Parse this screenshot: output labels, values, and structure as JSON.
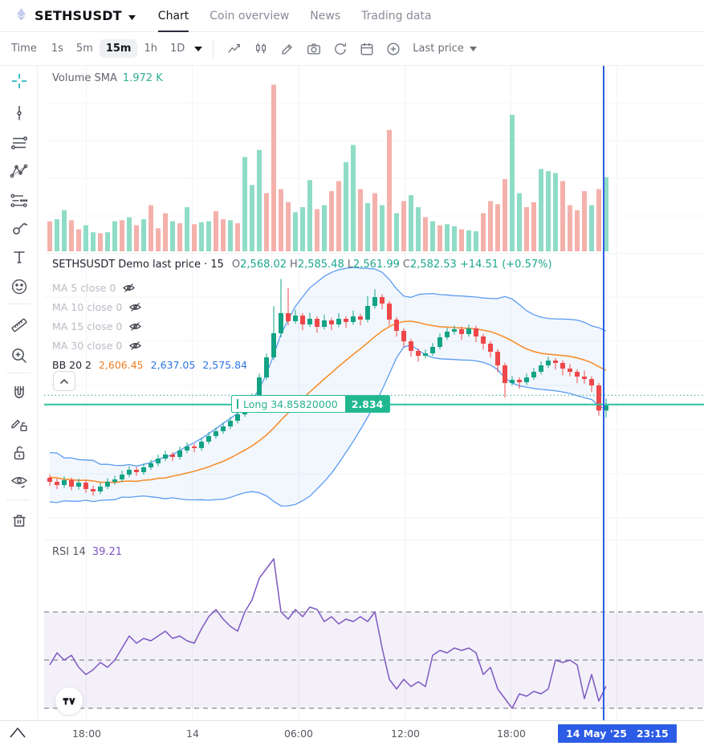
{
  "header": {
    "symbol": "SETHSUSDT",
    "tabs": [
      "Chart",
      "Coin overview",
      "News",
      "Trading data"
    ],
    "active_tab": "Chart"
  },
  "toolbar": {
    "time_label": "Time",
    "intervals": [
      "1s",
      "5m",
      "15m",
      "1h",
      "1D"
    ],
    "active_interval": "15m",
    "icons": [
      "indicators-icon",
      "candles-icon",
      "draw-icon",
      "camera-icon",
      "undo-icon",
      "calendar-icon",
      "add-circle-icon"
    ],
    "price_mode": "Last price"
  },
  "left_toolbar": {
    "tools": [
      "crosshair",
      "trend-line",
      "fib-lines",
      "xabcd-pattern",
      "forecast",
      "brush",
      "text",
      "emoji",
      "ruler",
      "zoom-in",
      "magnet",
      "draw-lock",
      "lock",
      "eye",
      "trash",
      "chevron-up"
    ],
    "active_tool": "crosshair"
  },
  "volume_pane": {
    "label": "Volume SMA",
    "value": "1.972 K"
  },
  "price_pane": {
    "legend_title": "SETHSUSDT Demo last price · 15",
    "ohlc_labels": [
      "O",
      "H",
      "L",
      "C"
    ],
    "ohlc": {
      "open": "2,568.02",
      "high": "2,585.48",
      "low": "2,561.99",
      "close": "2,582.53",
      "change": "+14.51 (+0.57%)"
    },
    "ma_rows": [
      "MA 5 close 0",
      "MA 10 close 0",
      "MA 15 close 0",
      "MA 30 close 0"
    ],
    "bb": {
      "label": "BB 20 2",
      "basis": "2,606.45",
      "upper": "2,637.05",
      "lower": "2,575.84"
    },
    "position": {
      "label": "Long 34.85820000",
      "value": "2.834"
    }
  },
  "rsi_pane": {
    "label": "RSI 14",
    "value": "39.21"
  },
  "time_axis": {
    "labels": [
      "18:00",
      "14",
      "06:00",
      "12:00",
      "18:00"
    ],
    "crosshair_date": "14 May '25",
    "crosshair_time": "23:15"
  },
  "colors": {
    "up": "#12a385",
    "down": "#ef4749",
    "vol_up": "#8fdcc6",
    "vol_down": "#f4b1ab",
    "bb_line": "#5b9cf0",
    "bb_fill": "rgba(90,150,240,0.08)",
    "bb_mid": "#f68f2e",
    "rsi": "#7e57c2",
    "rsi_band": "rgba(126,87,194,0.09)",
    "accent_teal": "#1ca78c",
    "crosshair_blue": "#2c5ce5",
    "entry_green": "#2fbf9f"
  },
  "chart_data": [
    {
      "pane": "volume",
      "type": "bar",
      "indicator": "Volume SMA",
      "current_value": "1.972 K",
      "unit": "K",
      "ylim": [
        0,
        9
      ],
      "values": [
        1.5,
        1.6,
        2.05,
        1.55,
        1.1,
        1.3,
        0.95,
        0.9,
        0.95,
        1.5,
        1.55,
        1.7,
        1.3,
        1.6,
        2.3,
        1.15,
        1.9,
        1.5,
        1.4,
        2.2,
        1.35,
        1.45,
        1.5,
        2.0,
        1.6,
        1.55,
        1.4,
        4.7,
        3.3,
        5.05,
        2.9,
        8.3,
        3.1,
        2.45,
        1.95,
        2.2,
        3.55,
        2.1,
        2.3,
        3.0,
        3.5,
        4.45,
        5.3,
        3.1,
        2.4,
        2.9,
        2.3,
        6.05,
        1.9,
        2.5,
        2.8,
        2.2,
        1.7,
        1.5,
        1.3,
        1.35,
        1.25,
        1.1,
        1.05,
        1.0,
        1.9,
        2.5,
        2.35,
        3.6,
        6.8,
        2.9,
        2.2,
        2.45,
        4.1,
        4.0,
        3.9,
        3.5,
        2.3,
        2.05,
        3.0,
        2.3,
        3.1,
        3.7
      ],
      "up": [
        0,
        1,
        1,
        0,
        0,
        1,
        1,
        0,
        1,
        1,
        0,
        1,
        0,
        1,
        0,
        0,
        0,
        1,
        0,
        1,
        0,
        1,
        1,
        0,
        0,
        1,
        0,
        1,
        1,
        1,
        0,
        0,
        0,
        0,
        1,
        1,
        1,
        0,
        1,
        0,
        0,
        1,
        1,
        0,
        1,
        0,
        1,
        0,
        1,
        0,
        1,
        1,
        0,
        1,
        0,
        1,
        1,
        0,
        1,
        1,
        0,
        0,
        0,
        0,
        1,
        1,
        0,
        0,
        1,
        1,
        1,
        0,
        0,
        0,
        0,
        1,
        0,
        1
      ]
    },
    {
      "pane": "price",
      "type": "candlestick",
      "ylim": [
        2515.7,
        2658.5
      ],
      "bollinger": {
        "length": 20,
        "mult": 2
      },
      "entry_price": 2583.0,
      "dotted_price": 2587.6,
      "bb_seed": [
        2556,
        2549,
        2560,
        2545,
        2552,
        2538,
        2548,
        2556,
        2542,
        2550,
        2536,
        2547,
        2553,
        2540,
        2549,
        2543,
        2554,
        2539,
        2546,
        2544
      ],
      "candles": [
        [
          2546.5,
          2548.0,
          2542.5,
          2544.5
        ],
        [
          2544.5,
          2546.0,
          2540.9,
          2542.9
        ],
        [
          2542.9,
          2547.2,
          2541.5,
          2545.3
        ],
        [
          2545.3,
          2546.6,
          2540.3,
          2542.1
        ],
        [
          2542.1,
          2546.1,
          2540.6,
          2544.1
        ],
        [
          2544.1,
          2545.4,
          2539.0,
          2540.9
        ],
        [
          2540.9,
          2542.5,
          2537.6,
          2539.7
        ],
        [
          2539.7,
          2544.0,
          2538.4,
          2542.1
        ],
        [
          2542.1,
          2546.3,
          2540.9,
          2544.5
        ],
        [
          2544.5,
          2547.5,
          2543.1,
          2545.7
        ],
        [
          2545.7,
          2550.0,
          2544.3,
          2548.1
        ],
        [
          2548.1,
          2552.4,
          2546.8,
          2550.5
        ],
        [
          2550.5,
          2551.9,
          2547.5,
          2549.3
        ],
        [
          2549.3,
          2553.6,
          2548.0,
          2551.7
        ],
        [
          2551.7,
          2555.5,
          2550.4,
          2553.7
        ],
        [
          2553.7,
          2558.0,
          2552.3,
          2556.1
        ],
        [
          2556.1,
          2560.0,
          2554.8,
          2558.1
        ],
        [
          2558.1,
          2559.4,
          2554.9,
          2556.9
        ],
        [
          2556.9,
          2562.0,
          2555.6,
          2560.1
        ],
        [
          2560.1,
          2564.0,
          2558.8,
          2562.1
        ],
        [
          2562.1,
          2563.4,
          2559.2,
          2561.3
        ],
        [
          2561.3,
          2566.4,
          2560.0,
          2564.5
        ],
        [
          2564.5,
          2569.2,
          2563.2,
          2567.3
        ],
        [
          2567.3,
          2571.6,
          2566.0,
          2569.7
        ],
        [
          2569.7,
          2574.0,
          2568.4,
          2572.1
        ],
        [
          2572.1,
          2576.8,
          2570.8,
          2574.9
        ],
        [
          2574.9,
          2580.0,
          2573.6,
          2578.1
        ],
        [
          2578.1,
          2583.2,
          2576.8,
          2581.3
        ],
        [
          2581.3,
          2588.4,
          2580.0,
          2586.5
        ],
        [
          2586.5,
          2598.4,
          2585.2,
          2596.5
        ],
        [
          2596.5,
          2608.4,
          2595.2,
          2606.5
        ],
        [
          2606.5,
          2632.0,
          2605.2,
          2618.5
        ],
        [
          2618.5,
          2645.5,
          2616.5,
          2628.5
        ],
        [
          2628.5,
          2641.0,
          2622.5,
          2624.5
        ],
        [
          2624.5,
          2630.2,
          2623.2,
          2627.3
        ],
        [
          2627.3,
          2628.6,
          2620.0,
          2622.9
        ],
        [
          2622.9,
          2628.6,
          2621.6,
          2625.7
        ],
        [
          2625.7,
          2627.0,
          2618.8,
          2621.7
        ],
        [
          2621.7,
          2627.8,
          2620.4,
          2624.9
        ],
        [
          2624.9,
          2626.2,
          2620.0,
          2622.9
        ],
        [
          2622.9,
          2628.6,
          2621.6,
          2625.7
        ],
        [
          2625.7,
          2627.0,
          2621.2,
          2624.1
        ],
        [
          2624.1,
          2629.8,
          2622.8,
          2626.9
        ],
        [
          2626.9,
          2628.2,
          2622.4,
          2625.3
        ],
        [
          2625.3,
          2637.0,
          2624.0,
          2632.1
        ],
        [
          2632.1,
          2640.5,
          2630.8,
          2636.5
        ],
        [
          2636.5,
          2638.0,
          2630.4,
          2633.3
        ],
        [
          2633.3,
          2634.6,
          2622.4,
          2625.3
        ],
        [
          2625.3,
          2626.6,
          2616.8,
          2619.7
        ],
        [
          2619.7,
          2621.0,
          2611.6,
          2614.5
        ],
        [
          2614.5,
          2615.8,
          2606.8,
          2609.7
        ],
        [
          2609.7,
          2611.0,
          2604.4,
          2607.3
        ],
        [
          2607.3,
          2610.4,
          2606.0,
          2608.5
        ],
        [
          2608.5,
          2613.6,
          2607.2,
          2611.7
        ],
        [
          2611.7,
          2618.4,
          2610.4,
          2616.5
        ],
        [
          2616.5,
          2621.2,
          2615.2,
          2619.3
        ],
        [
          2619.3,
          2622.4,
          2618.0,
          2620.5
        ],
        [
          2620.5,
          2621.8,
          2615.2,
          2618.1
        ],
        [
          2618.1,
          2622.8,
          2616.8,
          2620.9
        ],
        [
          2620.9,
          2622.2,
          2614.0,
          2616.9
        ],
        [
          2616.9,
          2618.2,
          2610.4,
          2613.3
        ],
        [
          2613.3,
          2614.6,
          2606.4,
          2609.3
        ],
        [
          2609.3,
          2610.6,
          2599.0,
          2602.5
        ],
        [
          2602.5,
          2603.8,
          2586.5,
          2593.7
        ],
        [
          2593.7,
          2597.2,
          2592.4,
          2595.3
        ],
        [
          2595.3,
          2596.6,
          2590.8,
          2594.1
        ],
        [
          2594.1,
          2598.4,
          2592.8,
          2596.5
        ],
        [
          2596.5,
          2601.2,
          2595.2,
          2599.3
        ],
        [
          2599.3,
          2604.4,
          2598.0,
          2602.5
        ],
        [
          2602.5,
          2606.8,
          2601.2,
          2604.9
        ],
        [
          2604.9,
          2606.2,
          2600.4,
          2603.7
        ],
        [
          2603.7,
          2605.0,
          2597.6,
          2600.9
        ],
        [
          2600.9,
          2603.2,
          2597.0,
          2599.3
        ],
        [
          2599.3,
          2600.6,
          2593.6,
          2596.9
        ],
        [
          2596.9,
          2599.9,
          2593.4,
          2595.7
        ],
        [
          2595.7,
          2597.0,
          2589.2,
          2592.5
        ],
        [
          2592.5,
          2593.8,
          2577.5,
          2580.0
        ],
        [
          2580.0,
          2586.0,
          2576.5,
          2582.5
        ]
      ]
    },
    {
      "pane": "rsi",
      "type": "line",
      "indicator": "RSI 14",
      "current_value": "39.21",
      "ylim": [
        25,
        100
      ],
      "bands": [
        70,
        50,
        30
      ],
      "values": [
        48,
        53,
        50,
        52,
        47,
        44,
        46,
        49,
        47,
        50,
        55,
        60,
        57,
        59,
        58,
        60,
        62,
        59,
        60,
        58,
        57,
        63,
        68,
        71,
        67,
        64,
        62,
        70,
        75,
        84,
        88,
        92,
        70,
        67,
        71,
        68,
        72,
        71,
        66,
        68,
        65,
        67,
        66,
        68,
        66,
        70,
        55,
        42,
        38,
        42,
        39,
        41,
        39,
        52,
        54,
        53,
        55,
        54,
        55,
        53,
        44,
        47,
        38,
        34,
        30,
        36,
        35,
        37,
        36,
        38,
        50,
        49,
        50,
        48,
        34,
        44,
        33,
        39.2
      ]
    }
  ]
}
